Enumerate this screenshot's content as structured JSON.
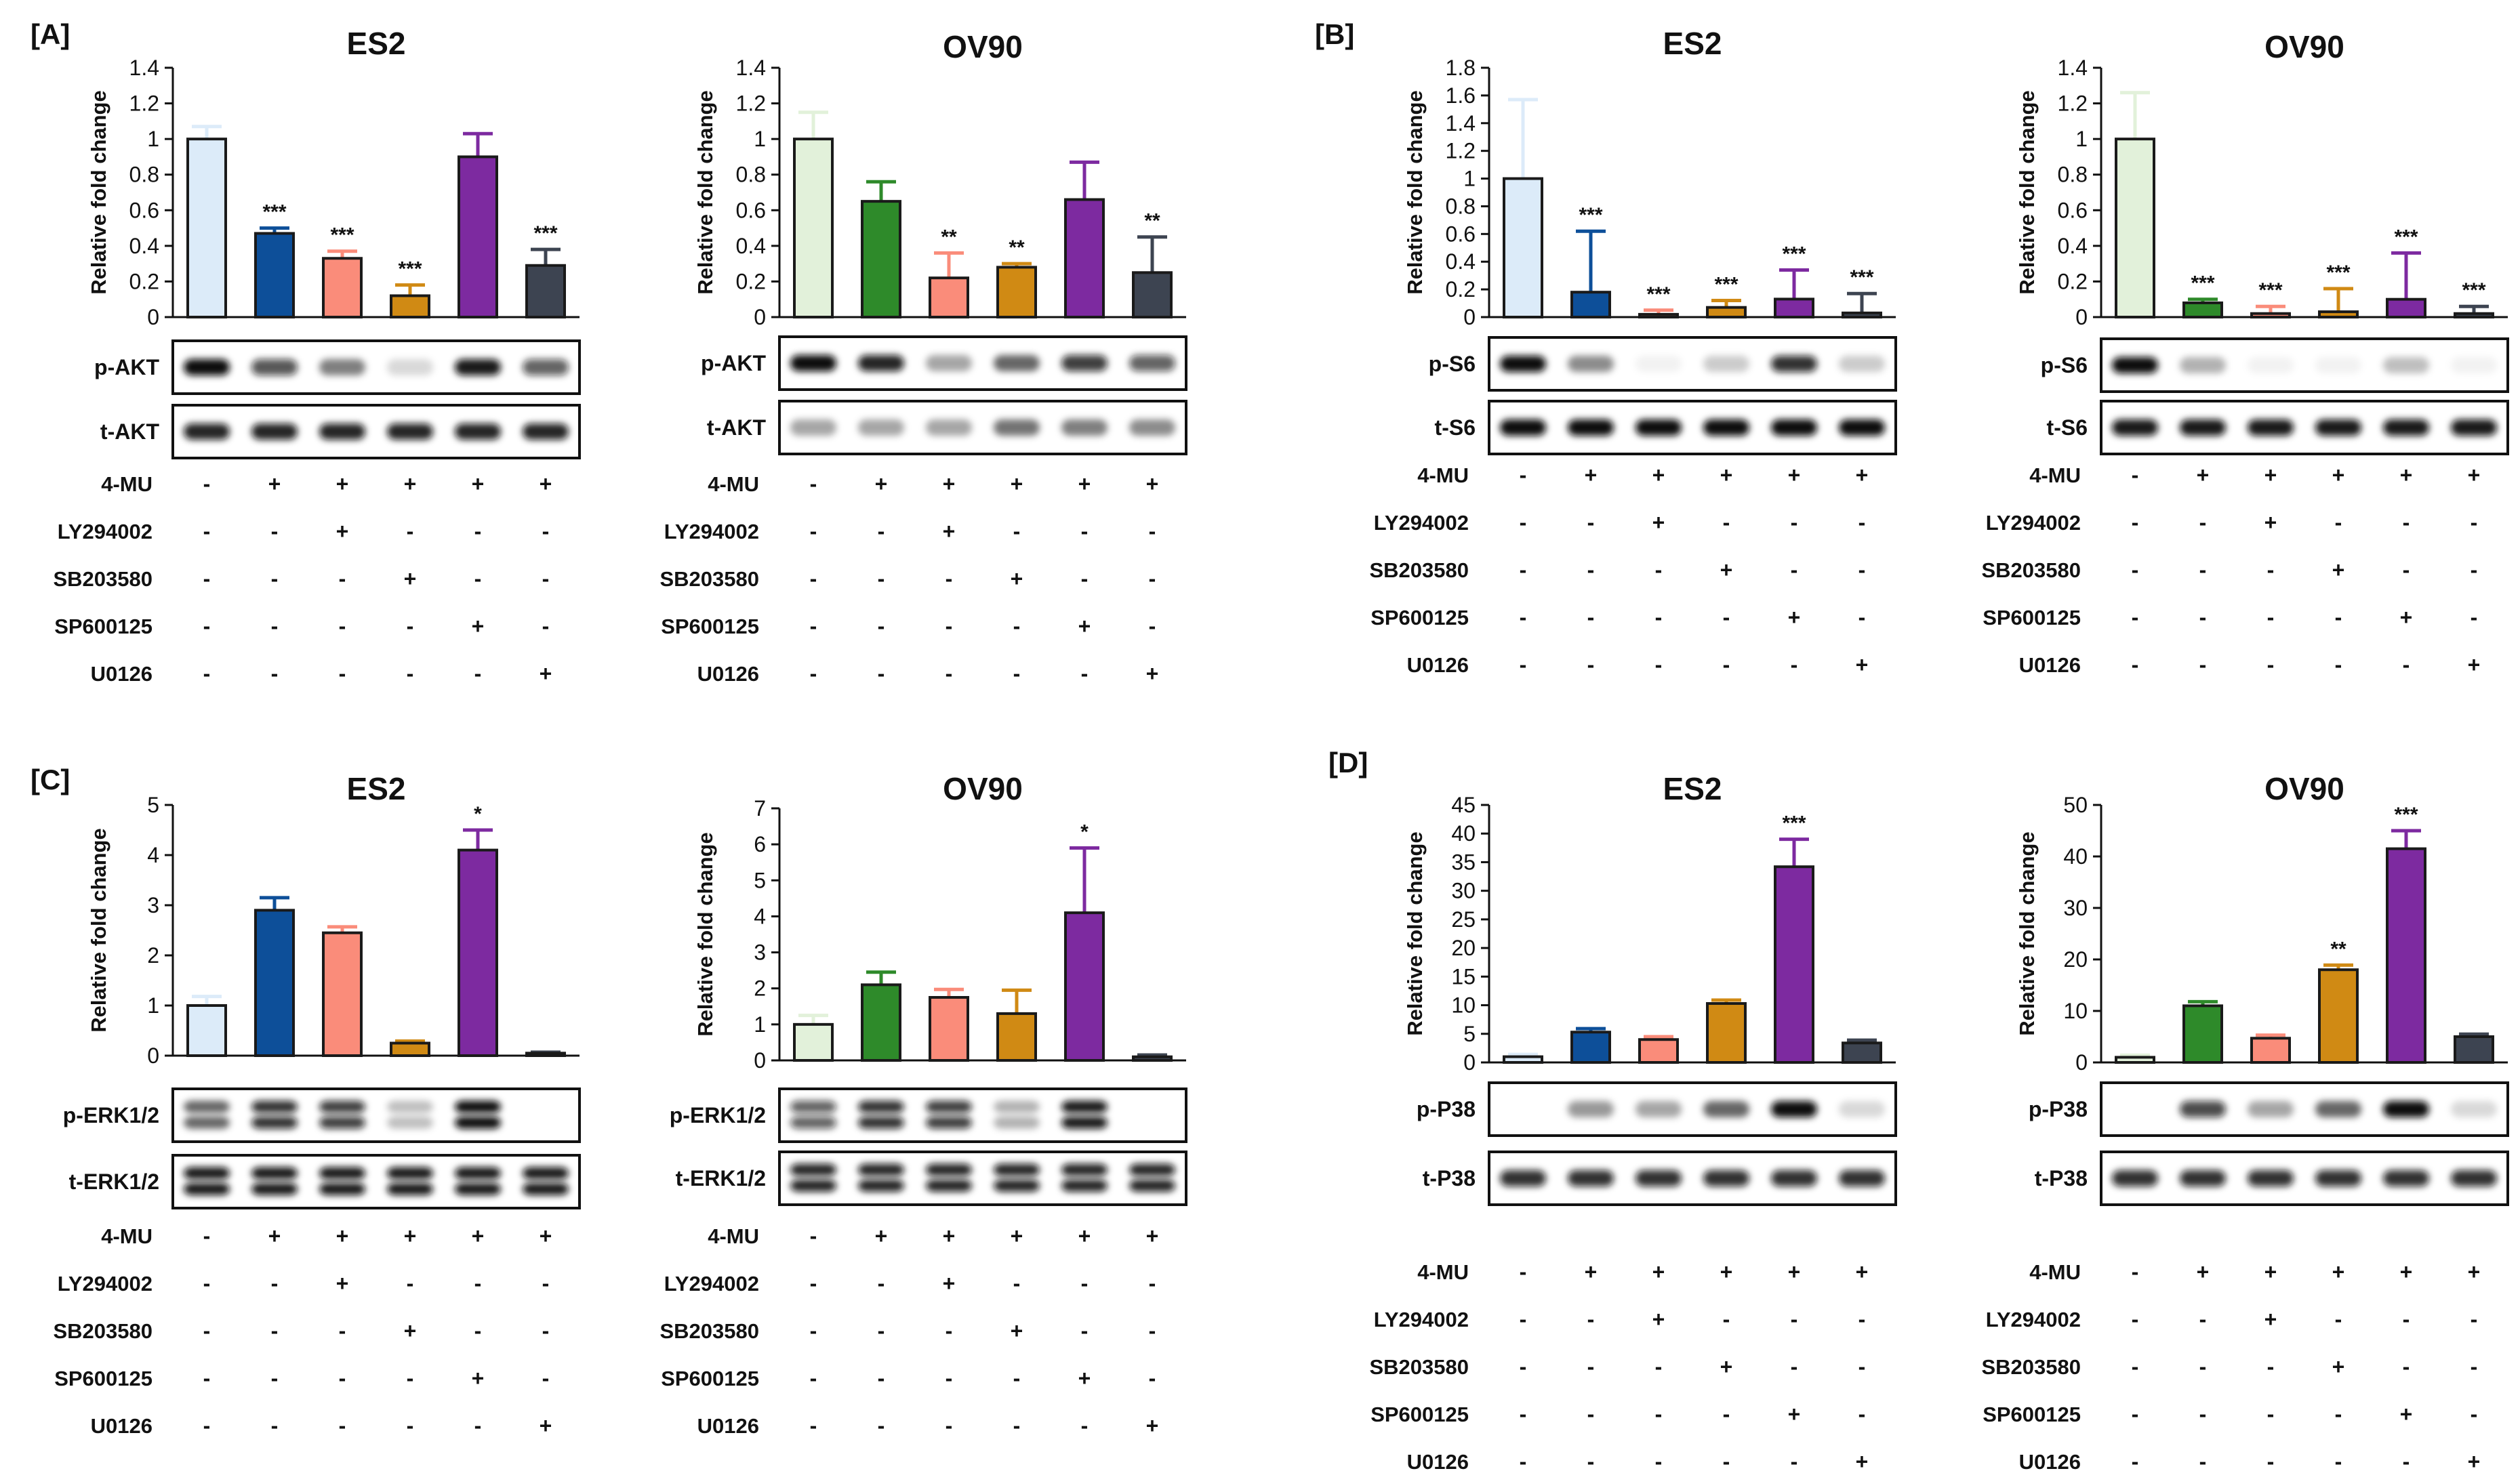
{
  "conditions": {
    "rows": [
      "4-MU",
      "LY294002",
      "SB203580",
      "SP600125",
      "U0126"
    ],
    "matrix": [
      [
        "-",
        "+",
        "+",
        "+",
        "+",
        "+"
      ],
      [
        "-",
        "-",
        "+",
        "-",
        "-",
        "-"
      ],
      [
        "-",
        "-",
        "-",
        "+",
        "-",
        "-"
      ],
      [
        "-",
        "-",
        "-",
        "-",
        "+",
        "-"
      ],
      [
        "-",
        "-",
        "-",
        "-",
        "-",
        "+"
      ]
    ]
  },
  "bar_colors": {
    "ES2": [
      "#dcebf9",
      "#0d4f99",
      "#fa8c7a",
      "#d08a14",
      "#7d2aa0",
      "#3d4451"
    ],
    "OV90": [
      "#e2f1da",
      "#2e8a2a",
      "#fa8c7a",
      "#d08a14",
      "#7d2aa0",
      "#3d4451"
    ]
  },
  "chart_data": [
    {
      "type": "bar",
      "panel": "[A]",
      "title": "ES2",
      "ylabel": "Relative fold change",
      "ylim": [
        0,
        1.4
      ],
      "yticks": [
        "0",
        "0.2",
        "0.4",
        "0.6",
        "0.8",
        "1",
        "1.2",
        "1.4"
      ],
      "values": [
        1.0,
        0.47,
        0.33,
        0.12,
        0.9,
        0.29
      ],
      "errors": [
        0.07,
        0.03,
        0.04,
        0.06,
        0.13,
        0.09
      ],
      "significance": [
        "",
        "***",
        "***",
        "***",
        "",
        "***"
      ],
      "blots": [
        "p-AKT",
        "t-AKT"
      ],
      "palette": "ES2"
    },
    {
      "type": "bar",
      "panel": "",
      "title": "OV90",
      "ylabel": "Relative fold change",
      "ylim": [
        0,
        1.4
      ],
      "yticks": [
        "0",
        "0.2",
        "0.4",
        "0.6",
        "0.8",
        "1",
        "1.2",
        "1.4"
      ],
      "values": [
        1.0,
        0.65,
        0.22,
        0.28,
        0.66,
        0.25
      ],
      "errors": [
        0.15,
        0.11,
        0.14,
        0.02,
        0.21,
        0.2
      ],
      "significance": [
        "",
        "",
        "**",
        "**",
        "",
        "**"
      ],
      "blots": [
        "p-AKT",
        "t-AKT"
      ],
      "palette": "OV90"
    },
    {
      "type": "bar",
      "panel": "[B]",
      "title": "ES2",
      "ylabel": "Relative fold change",
      "ylim": [
        0,
        1.8
      ],
      "yticks": [
        "0",
        "0.2",
        "0.4",
        "0.6",
        "0.8",
        "1",
        "1.2",
        "1.4",
        "1.6",
        "1.8"
      ],
      "values": [
        1.0,
        0.18,
        0.02,
        0.07,
        0.13,
        0.03
      ],
      "errors": [
        0.57,
        0.44,
        0.03,
        0.05,
        0.21,
        0.14
      ],
      "significance": [
        "",
        "***",
        "***",
        "***",
        "***",
        "***"
      ],
      "blots": [
        "p-S6",
        "t-S6"
      ],
      "palette": "ES2"
    },
    {
      "type": "bar",
      "panel": "",
      "title": "OV90",
      "ylabel": "Relative fold change",
      "ylim": [
        0,
        1.4
      ],
      "yticks": [
        "0",
        "0.2",
        "0.4",
        "0.6",
        "0.8",
        "1",
        "1.2",
        "1.4"
      ],
      "values": [
        1.0,
        0.08,
        0.02,
        0.03,
        0.1,
        0.02
      ],
      "errors": [
        0.26,
        0.02,
        0.04,
        0.13,
        0.26,
        0.04
      ],
      "significance": [
        "",
        "***",
        "***",
        "***",
        "***",
        "***"
      ],
      "blots": [
        "p-S6",
        "t-S6"
      ],
      "palette": "OV90"
    },
    {
      "type": "bar",
      "panel": "[C]",
      "title": "ES2",
      "ylabel": "Relative fold change",
      "ylim": [
        0,
        5
      ],
      "yticks": [
        "0",
        "1",
        "2",
        "3",
        "4",
        "5"
      ],
      "values": [
        1.0,
        2.9,
        2.45,
        0.25,
        4.1,
        0.05
      ],
      "errors": [
        0.18,
        0.25,
        0.12,
        0.04,
        0.4,
        0.02
      ],
      "significance": [
        "",
        "",
        "",
        "",
        "*",
        ""
      ],
      "blots": [
        "p-ERK1/2",
        "t-ERK1/2"
      ],
      "palette": "ES2"
    },
    {
      "type": "bar",
      "panel": "",
      "title": "OV90",
      "ylabel": "Relative fold change",
      "ylim": [
        0,
        7
      ],
      "yticks": [
        "0",
        "1",
        "2",
        "3",
        "4",
        "5",
        "6",
        "7"
      ],
      "values": [
        1.0,
        2.1,
        1.75,
        1.3,
        4.1,
        0.1
      ],
      "errors": [
        0.25,
        0.35,
        0.22,
        0.65,
        1.8,
        0.05
      ],
      "significance": [
        "",
        "",
        "",
        "",
        "*",
        ""
      ],
      "blots": [
        "p-ERK1/2",
        "t-ERK1/2"
      ],
      "palette": "OV90"
    },
    {
      "type": "bar",
      "panel": "[D]",
      "title": "ES2",
      "ylabel": "Relative fold change",
      "ylim": [
        0,
        45
      ],
      "yticks": [
        "0",
        "5",
        "10",
        "15",
        "20",
        "25",
        "30",
        "35",
        "40",
        "45"
      ],
      "values": [
        1.0,
        5.3,
        4.0,
        10.3,
        34.2,
        3.4
      ],
      "errors": [
        0.4,
        0.6,
        0.5,
        0.6,
        4.8,
        0.5
      ],
      "significance": [
        "",
        "",
        "",
        "",
        "***",
        ""
      ],
      "blots": [
        "p-P38",
        "t-P38"
      ],
      "palette": "ES2"
    },
    {
      "type": "bar",
      "panel": "",
      "title": "OV90",
      "ylabel": "Relative fold change",
      "ylim": [
        0,
        50
      ],
      "yticks": [
        "0",
        "10",
        "20",
        "30",
        "40",
        "50"
      ],
      "values": [
        1.0,
        11.0,
        4.7,
        18.0,
        41.5,
        5.0
      ],
      "errors": [
        0.4,
        0.8,
        0.6,
        0.9,
        3.5,
        0.5
      ],
      "significance": [
        "",
        "",
        "",
        "**",
        "***",
        ""
      ],
      "blots": [
        "p-P38",
        "t-P38"
      ],
      "palette": "OV90"
    }
  ],
  "blot_profiles": {
    "p-AKT": [
      [
        1.0,
        0.7,
        0.5,
        0.15,
        0.95,
        0.65
      ],
      [
        1.0,
        0.9,
        0.35,
        0.6,
        0.8,
        0.65
      ]
    ],
    "t-AKT": [
      [
        0.9,
        0.9,
        0.9,
        0.9,
        0.9,
        0.9
      ],
      [
        0.35,
        0.35,
        0.35,
        0.55,
        0.5,
        0.45
      ]
    ],
    "p-S6": [
      [
        1.0,
        0.45,
        0.05,
        0.2,
        0.85,
        0.2
      ],
      [
        1.0,
        0.3,
        0.05,
        0.05,
        0.25,
        0.05
      ]
    ],
    "t-S6": [
      [
        1.0,
        1.0,
        1.0,
        1.0,
        1.0,
        1.0
      ],
      [
        0.95,
        0.95,
        0.95,
        0.95,
        0.95,
        0.95
      ]
    ],
    "p-ERK1/2": [
      [
        0.6,
        0.85,
        0.8,
        0.25,
        1.0,
        0.0
      ],
      [
        0.65,
        0.85,
        0.8,
        0.3,
        0.95,
        0.0
      ]
    ],
    "t-ERK1/2": [
      [
        0.95,
        0.95,
        0.95,
        0.95,
        0.95,
        0.95
      ],
      [
        0.9,
        0.9,
        0.9,
        0.9,
        0.9,
        0.9
      ]
    ],
    "p-P38": [
      [
        0.0,
        0.4,
        0.35,
        0.6,
        1.0,
        0.15
      ],
      [
        0.0,
        0.75,
        0.35,
        0.6,
        1.0,
        0.15
      ]
    ],
    "t-P38": [
      [
        0.85,
        0.85,
        0.85,
        0.85,
        0.85,
        0.85
      ],
      [
        0.85,
        0.85,
        0.85,
        0.85,
        0.85,
        0.85
      ]
    ]
  }
}
